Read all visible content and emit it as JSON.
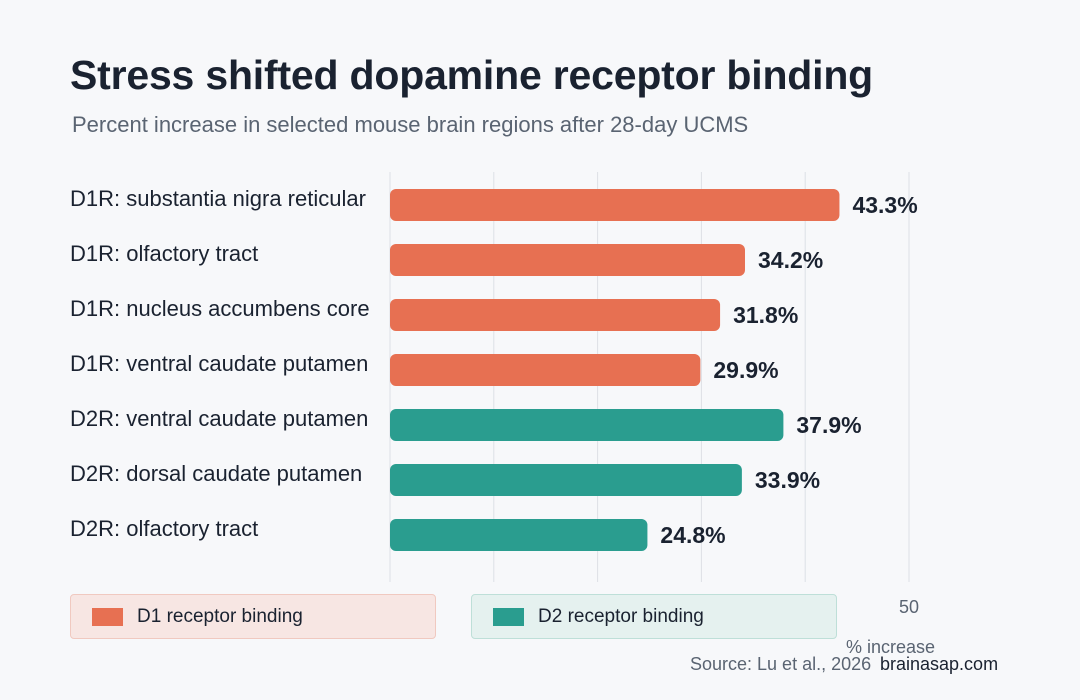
{
  "header": {
    "title": "Stress shifted dopamine receptor binding",
    "subtitle": "Percent increase in selected mouse brain regions after 28-day UCMS"
  },
  "legend": {
    "d1_label": "D1 receptor binding",
    "d2_label": "D2 receptor binding"
  },
  "footer": {
    "source": "Source: Lu et al., 2026",
    "brand": "brainasap.com"
  },
  "colors": {
    "d1": "#e77052",
    "d2": "#2a9d8f",
    "gridline": "#dde0e5",
    "value_text": "#1a2230"
  },
  "chart_data": {
    "type": "bar",
    "orientation": "horizontal",
    "title": "Stress shifted dopamine receptor binding",
    "subtitle": "Percent increase in selected mouse brain regions after 28-day UCMS",
    "xlabel": "% increase",
    "xlim": [
      0,
      50
    ],
    "xticks": [
      0,
      10,
      20,
      30,
      40,
      50
    ],
    "xtick_labels_shown": [
      "50"
    ],
    "grid": true,
    "legend_placement": "bottom",
    "categories": [
      "D1R: substantia nigra reticular",
      "D1R: olfactory tract",
      "D1R: nucleus accumbens core",
      "D1R: ventral caudate putamen",
      "D2R: ventral caudate putamen",
      "D2R: dorsal caudate putamen",
      "D2R: olfactory tract"
    ],
    "values": [
      43.3,
      34.2,
      31.8,
      29.9,
      37.9,
      33.9,
      24.8
    ],
    "value_labels": [
      "43.3%",
      "34.2%",
      "31.8%",
      "29.9%",
      "37.9%",
      "33.9%",
      "24.8%"
    ],
    "groups": [
      "d1",
      "d1",
      "d1",
      "d1",
      "d2",
      "d2",
      "d2"
    ],
    "series": [
      {
        "name": "D1 receptor binding",
        "key": "d1"
      },
      {
        "name": "D2 receptor binding",
        "key": "d2"
      }
    ]
  }
}
